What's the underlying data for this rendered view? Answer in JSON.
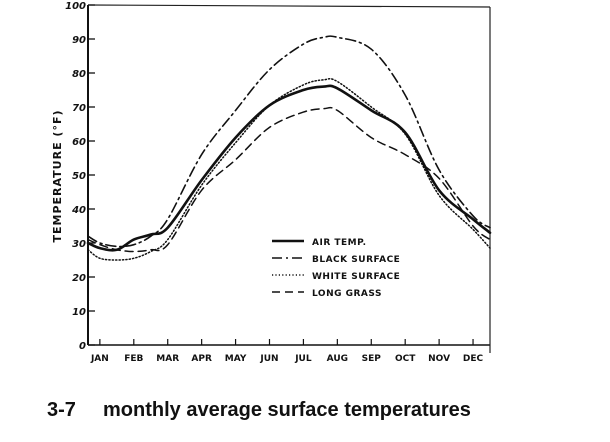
{
  "chart_data": {
    "type": "line",
    "title": "",
    "xlabel": "",
    "ylabel": "TEMPERATURE (°F)",
    "categories": [
      "JAN",
      "FEB",
      "MAR",
      "APR",
      "MAY",
      "JUN",
      "JUL",
      "AUG",
      "SEP",
      "OCT",
      "NOV",
      "DEC"
    ],
    "ylim": [
      0,
      100
    ],
    "xlim": [
      0.65,
      12.5
    ],
    "yticks": [
      "0",
      "10",
      "20",
      "30",
      "40",
      "50",
      "60",
      "70",
      "80",
      "90",
      "100"
    ],
    "grid": false,
    "legend_position": "center-right",
    "series": [
      {
        "name": "AIR TEMP.",
        "style": "solid",
        "x": [
          0.65,
          1.0,
          1.5,
          2.0,
          2.5,
          3.0,
          4.0,
          5.0,
          6.0,
          7.0,
          7.6,
          8.0,
          9.0,
          10.0,
          11.0,
          12.0,
          12.5
        ],
        "y": [
          30,
          28.5,
          28,
          31,
          32.5,
          34.5,
          48.5,
          61,
          70.5,
          75,
          76,
          75.5,
          69,
          62.5,
          45.5,
          37,
          33
        ]
      },
      {
        "name": "BLACK SURFACE",
        "style": "dashdot",
        "x": [
          0.65,
          1.0,
          1.5,
          2.0,
          2.5,
          3.0,
          4.0,
          5.0,
          6.0,
          7.0,
          7.6,
          8.0,
          9.0,
          10.0,
          11.0,
          12.0,
          12.5
        ],
        "y": [
          32,
          30,
          29,
          29.5,
          32,
          37,
          56,
          69,
          81,
          88.5,
          90.5,
          90.5,
          87,
          73.5,
          51.5,
          38,
          34.5
        ]
      },
      {
        "name": "WHITE SURFACE",
        "style": "dotted",
        "x": [
          0.65,
          1.0,
          1.5,
          2.0,
          2.5,
          3.0,
          4.0,
          5.0,
          6.0,
          7.0,
          7.6,
          8.0,
          9.0,
          10.0,
          11.0,
          12.0,
          12.5
        ],
        "y": [
          28,
          25.5,
          25,
          25.5,
          27.5,
          31,
          47,
          59.5,
          70.5,
          76.5,
          78,
          77.5,
          70,
          62,
          44,
          34,
          28.5
        ]
      },
      {
        "name": "LONG GRASS",
        "style": "dashed",
        "x": [
          0.65,
          1.0,
          1.5,
          2.0,
          2.5,
          3.0,
          4.0,
          5.0,
          6.0,
          7.0,
          7.6,
          8.0,
          9.0,
          10.0,
          11.0,
          12.0,
          12.5
        ],
        "y": [
          31,
          29.5,
          28,
          27.5,
          28,
          29.5,
          45.5,
          54.5,
          64,
          68.5,
          69.5,
          69,
          61,
          56,
          49,
          35,
          31
        ]
      }
    ]
  },
  "caption": {
    "number": "3-7",
    "text": "monthly average surface temperatures"
  }
}
